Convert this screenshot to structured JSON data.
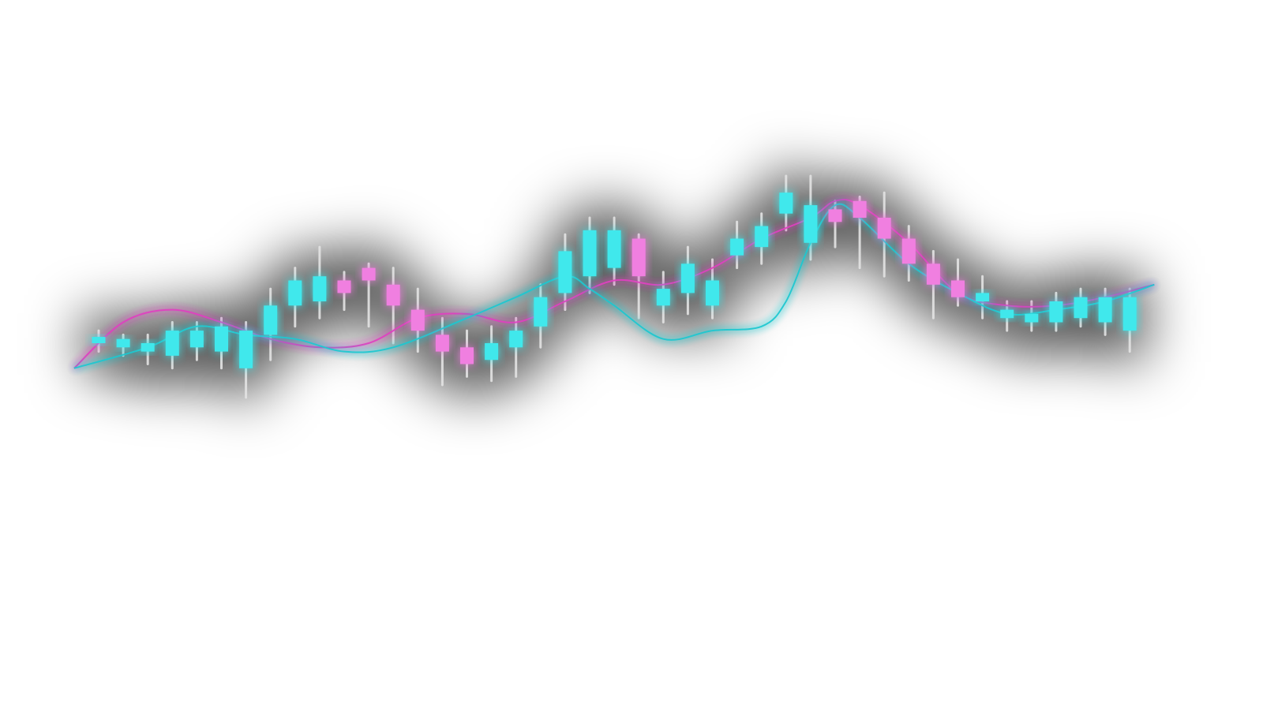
{
  "chart_data": {
    "type": "candlestick",
    "title": "",
    "xlabel": "",
    "ylabel": "",
    "grid": false,
    "legend": "none",
    "ylim": [
      0,
      100
    ],
    "colors": {
      "up": "#3fe8ec",
      "down": "#f07fe0",
      "wick": "#e4e4e4",
      "line_a": "#e040c0",
      "line_b": "#1fc8d0",
      "glow": "#000000"
    },
    "x": [
      1,
      2,
      3,
      4,
      5,
      6,
      7,
      8,
      9,
      10,
      11,
      12,
      13,
      14,
      15,
      16,
      17,
      18,
      19,
      20,
      21,
      22,
      23,
      24,
      25,
      26,
      27,
      28,
      29,
      30,
      31,
      32,
      33,
      34,
      35,
      36,
      37,
      38,
      39,
      40,
      41,
      42,
      43,
      44,
      45,
      46
    ],
    "candles": [
      {
        "x": 1,
        "open": 50,
        "close": 51.5,
        "high": 53,
        "low": 48,
        "dir": "up"
      },
      {
        "x": 2,
        "open": 49,
        "close": 51,
        "high": 52,
        "low": 47,
        "dir": "up"
      },
      {
        "x": 3,
        "open": 48,
        "close": 50,
        "high": 52,
        "low": 45,
        "dir": "up"
      },
      {
        "x": 4,
        "open": 47,
        "close": 53,
        "high": 55,
        "low": 44,
        "dir": "up"
      },
      {
        "x": 5,
        "open": 49,
        "close": 53,
        "high": 55,
        "low": 46,
        "dir": "up"
      },
      {
        "x": 6,
        "open": 48,
        "close": 54,
        "high": 56,
        "low": 44,
        "dir": "up"
      },
      {
        "x": 7,
        "open": 44,
        "close": 53,
        "high": 55,
        "low": 37,
        "dir": "up"
      },
      {
        "x": 8,
        "open": 52,
        "close": 59,
        "high": 63,
        "low": 46,
        "dir": "up"
      },
      {
        "x": 9,
        "open": 59,
        "close": 65,
        "high": 68,
        "low": 54,
        "dir": "up"
      },
      {
        "x": 10,
        "open": 60,
        "close": 66,
        "high": 73,
        "low": 56,
        "dir": "up"
      },
      {
        "x": 11,
        "open": 65,
        "close": 62,
        "high": 67,
        "low": 58,
        "dir": "down"
      },
      {
        "x": 12,
        "open": 68,
        "close": 65,
        "high": 69,
        "low": 54,
        "dir": "down"
      },
      {
        "x": 13,
        "open": 64,
        "close": 59,
        "high": 68,
        "low": 50,
        "dir": "down"
      },
      {
        "x": 14,
        "open": 58,
        "close": 53,
        "high": 63,
        "low": 48,
        "dir": "down"
      },
      {
        "x": 15,
        "open": 52,
        "close": 48,
        "high": 56,
        "low": 40,
        "dir": "down"
      },
      {
        "x": 16,
        "open": 49,
        "close": 45,
        "high": 53,
        "low": 42,
        "dir": "down"
      },
      {
        "x": 17,
        "open": 46,
        "close": 50,
        "high": 54,
        "low": 41,
        "dir": "up"
      },
      {
        "x": 18,
        "open": 49,
        "close": 53,
        "high": 56,
        "low": 42,
        "dir": "up"
      },
      {
        "x": 19,
        "open": 54,
        "close": 61,
        "high": 64,
        "low": 49,
        "dir": "up"
      },
      {
        "x": 20,
        "open": 62,
        "close": 72,
        "high": 76,
        "low": 58,
        "dir": "up"
      },
      {
        "x": 21,
        "open": 66,
        "close": 77,
        "high": 80,
        "low": 62,
        "dir": "up"
      },
      {
        "x": 22,
        "open": 68,
        "close": 77,
        "high": 80,
        "low": 64,
        "dir": "up"
      },
      {
        "x": 23,
        "open": 75,
        "close": 66,
        "high": 76,
        "low": 56,
        "dir": "down"
      },
      {
        "x": 24,
        "open": 59,
        "close": 63,
        "high": 67,
        "low": 55,
        "dir": "up"
      },
      {
        "x": 25,
        "open": 62,
        "close": 69,
        "high": 73,
        "low": 57,
        "dir": "up"
      },
      {
        "x": 26,
        "open": 59,
        "close": 65,
        "high": 70,
        "low": 56,
        "dir": "up"
      },
      {
        "x": 27,
        "open": 71,
        "close": 75,
        "high": 79,
        "low": 68,
        "dir": "up"
      },
      {
        "x": 28,
        "open": 73,
        "close": 78,
        "high": 81,
        "low": 69,
        "dir": "up"
      },
      {
        "x": 29,
        "open": 81,
        "close": 86,
        "high": 90,
        "low": 77,
        "dir": "up"
      },
      {
        "x": 30,
        "open": 74,
        "close": 83,
        "high": 90,
        "low": 70,
        "dir": "up"
      },
      {
        "x": 31,
        "open": 82,
        "close": 79,
        "high": 84,
        "low": 73,
        "dir": "down"
      },
      {
        "x": 32,
        "open": 84,
        "close": 80,
        "high": 85,
        "low": 68,
        "dir": "down"
      },
      {
        "x": 33,
        "open": 80,
        "close": 75,
        "high": 86,
        "low": 66,
        "dir": "down"
      },
      {
        "x": 34,
        "open": 75,
        "close": 69,
        "high": 78,
        "low": 65,
        "dir": "down"
      },
      {
        "x": 35,
        "open": 69,
        "close": 64,
        "high": 72,
        "low": 56,
        "dir": "down"
      },
      {
        "x": 36,
        "open": 65,
        "close": 61,
        "high": 70,
        "low": 59,
        "dir": "down"
      },
      {
        "x": 37,
        "open": 60,
        "close": 62,
        "high": 66,
        "low": 56,
        "dir": "up"
      },
      {
        "x": 38,
        "open": 56,
        "close": 58,
        "high": 60,
        "low": 53,
        "dir": "up"
      },
      {
        "x": 39,
        "open": 55,
        "close": 57,
        "high": 60,
        "low": 53,
        "dir": "up"
      },
      {
        "x": 40,
        "open": 55,
        "close": 60,
        "high": 62,
        "low": 53,
        "dir": "up"
      },
      {
        "x": 41,
        "open": 56,
        "close": 61,
        "high": 63,
        "low": 54,
        "dir": "up"
      },
      {
        "x": 42,
        "open": 55,
        "close": 61,
        "high": 63,
        "low": 52,
        "dir": "up"
      },
      {
        "x": 43,
        "open": 53,
        "close": 61,
        "high": 63,
        "low": 48,
        "dir": "up"
      }
    ],
    "series": [
      {
        "style": "line",
        "color_key": "line_a",
        "points": [
          [
            0,
            44
          ],
          [
            2,
            55
          ],
          [
            4,
            58
          ],
          [
            6,
            55
          ],
          [
            8,
            51
          ],
          [
            10,
            49
          ],
          [
            12,
            50
          ],
          [
            14,
            56
          ],
          [
            16,
            57
          ],
          [
            18,
            55
          ],
          [
            20,
            60
          ],
          [
            22,
            65
          ],
          [
            24,
            64
          ],
          [
            26,
            68
          ],
          [
            28,
            75
          ],
          [
            30,
            80
          ],
          [
            31,
            84
          ],
          [
            32,
            83
          ],
          [
            34,
            74
          ],
          [
            36,
            62
          ],
          [
            38,
            59
          ],
          [
            40,
            59
          ],
          [
            42,
            61
          ],
          [
            44,
            64
          ]
        ]
      },
      {
        "style": "line",
        "color_key": "line_b",
        "points": [
          [
            0,
            44
          ],
          [
            3,
            49
          ],
          [
            5,
            54
          ],
          [
            7,
            52
          ],
          [
            9,
            51
          ],
          [
            11,
            48
          ],
          [
            13,
            49
          ],
          [
            16,
            56
          ],
          [
            18,
            61
          ],
          [
            20,
            66
          ],
          [
            21,
            63
          ],
          [
            22,
            59
          ],
          [
            24,
            51
          ],
          [
            26,
            53
          ],
          [
            28,
            54
          ],
          [
            29,
            60
          ],
          [
            30,
            74
          ],
          [
            31,
            83
          ],
          [
            32,
            80
          ],
          [
            34,
            69
          ],
          [
            36,
            62
          ],
          [
            38,
            57
          ],
          [
            40,
            58
          ],
          [
            42,
            60
          ],
          [
            44,
            64
          ]
        ]
      }
    ]
  }
}
